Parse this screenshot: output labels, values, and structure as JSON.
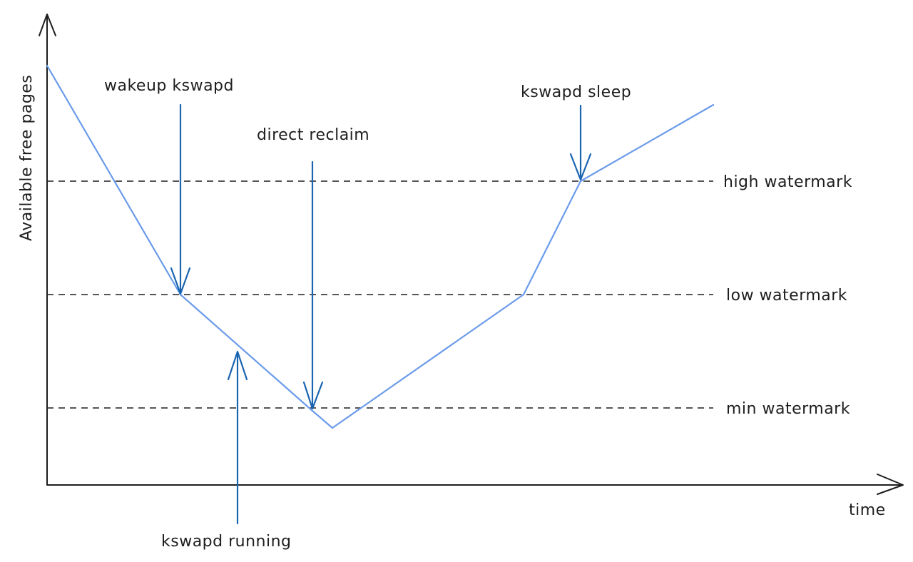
{
  "axes": {
    "y_label": "Available free pages",
    "x_label": "time"
  },
  "watermarks": [
    {
      "key": "high",
      "label": "high watermark"
    },
    {
      "key": "low",
      "label": "low watermark"
    },
    {
      "key": "min",
      "label": "min watermark"
    }
  ],
  "annotations": {
    "wakeup": "wakeup kswapd",
    "direct_reclaim": "direct reclaim",
    "kswapd_sleep": "kswapd sleep",
    "kswapd_running": "kswapd running"
  },
  "colors": {
    "curve": "#6b9bea",
    "arrow": "#1a64b0",
    "ink": "#1e1e1e"
  }
}
